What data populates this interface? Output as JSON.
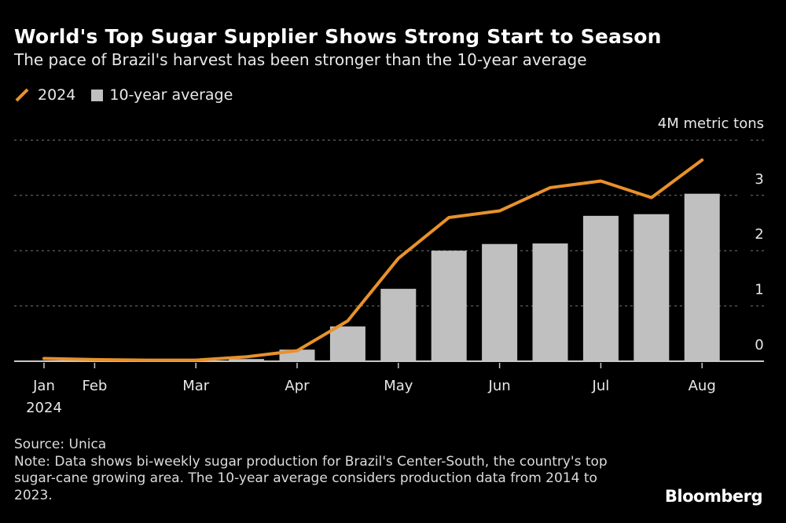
{
  "title": "World's Top Sugar Supplier Shows Strong Start to Season",
  "subtitle": "The pace of Brazil's harvest has been stronger than the 10-year average",
  "legend": {
    "line_label": "2024",
    "bar_label": "10-year average"
  },
  "footer": {
    "source": "Source: Unica",
    "note": "Note: Data shows bi-weekly sugar production for Brazil's Center-South, the country's top sugar-cane growing area. The 10-year average considers production data from 2014 to 2023."
  },
  "logo": "Bloomberg",
  "chart_data": {
    "type": "bar+line",
    "unit_label": "4M metric tons",
    "x": [
      "Jan 1",
      "Feb 1",
      "Feb 15",
      "Mar 1",
      "Mar 15",
      "Apr 1",
      "Apr 15",
      "May 1",
      "May 15",
      "Jun 1",
      "Jun 15",
      "Jul 1",
      "Jul 15",
      "Aug 1"
    ],
    "x_ticks": [
      {
        "index": 0,
        "label": "Jan",
        "sublabel": "2024"
      },
      {
        "index": 1,
        "label": "Feb"
      },
      {
        "index": 3,
        "label": "Mar"
      },
      {
        "index": 5,
        "label": "Apr"
      },
      {
        "index": 7,
        "label": "May"
      },
      {
        "index": 9,
        "label": "Jun"
      },
      {
        "index": 11,
        "label": "Jul"
      },
      {
        "index": 13,
        "label": "Aug"
      }
    ],
    "y_ticks": [
      "0",
      "1",
      "2",
      "3"
    ],
    "ylim": [
      0,
      4
    ],
    "grid": true,
    "legend_position": "top-left",
    "series": [
      {
        "name": "2024",
        "kind": "line",
        "color": "#e8912c",
        "values": [
          0.05,
          0.03,
          0.02,
          0.02,
          0.08,
          0.19,
          0.73,
          1.86,
          2.6,
          2.72,
          3.14,
          3.26,
          2.96,
          3.64
        ]
      },
      {
        "name": "10-year average",
        "kind": "bar",
        "color": "#c0c0c0",
        "values": [
          0,
          0,
          0,
          0.01,
          0.04,
          0.21,
          0.63,
          1.31,
          2.0,
          2.12,
          2.13,
          2.63,
          2.66,
          3.03
        ]
      }
    ]
  }
}
